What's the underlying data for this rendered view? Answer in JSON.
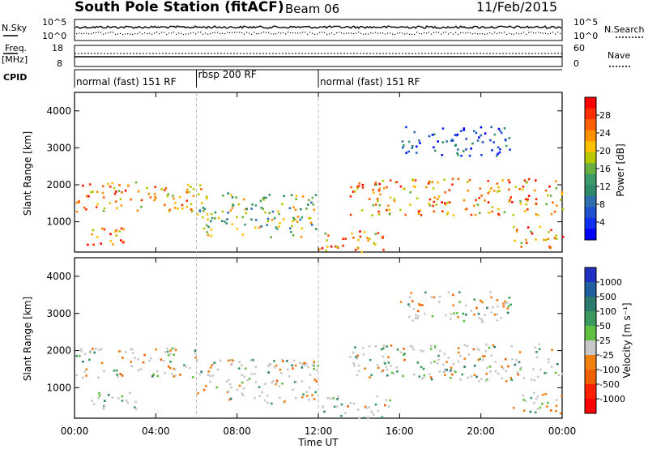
{
  "header": {
    "station": "South Pole Station (fitACF)",
    "beam": "Beam 06",
    "date": "11/Feb/2015"
  },
  "strips": {
    "nsky_label": "N.Sky",
    "nsky_ticks": [
      "10^5",
      "10^0"
    ],
    "nsearch_label": "N.Search",
    "nsearch_ticks": [
      "10^5",
      "10^0"
    ],
    "freq_label": "Freq.",
    "freq_unit": "[MHz]",
    "freq_ticks": [
      "18",
      "8"
    ],
    "nave_label": "Nave",
    "nave_ticks": [
      "60",
      "0"
    ],
    "cpid_label": "CPID",
    "cpid_segments": [
      {
        "label": "normal (fast) 151 RF",
        "start_h": 0,
        "end_h": 6
      },
      {
        "label": "rbsp 200 RF",
        "start_h": 6,
        "end_h": 12
      },
      {
        "label": "normal (fast) 151 RF",
        "start_h": 12,
        "end_h": 24
      }
    ]
  },
  "chart_data": [
    {
      "type": "heatmap",
      "ylabel": "Slant Range [km]",
      "yticks": [
        "4000",
        "3000",
        "2000",
        "1000"
      ],
      "ylim": [
        180,
        4500
      ],
      "xlim_hours": [
        0,
        24
      ],
      "colorbar": {
        "label": "Power [dB]",
        "ticks": [
          "28",
          "24",
          "20",
          "16",
          "12",
          "8",
          "4"
        ],
        "colors": [
          "#ff0000",
          "#ff3000",
          "#ff6000",
          "#ff9000",
          "#ffc000",
          "#b8c800",
          "#6ab040",
          "#3a9a6a",
          "#2f8a6a",
          "#2f6fb0",
          "#2050d0",
          "#1030f0",
          "#0000ff"
        ]
      },
      "scatter_bands": [
        {
          "t0": 0,
          "t1": 6.2,
          "r0": 1300,
          "r1": 2100,
          "value": "high"
        },
        {
          "t0": 0.6,
          "t1": 3,
          "r0": 400,
          "r1": 900,
          "value": "high"
        },
        {
          "t0": 6,
          "t1": 12,
          "r0": 600,
          "r1": 1800,
          "value": "mid"
        },
        {
          "t0": 13.5,
          "t1": 24,
          "r0": 1200,
          "r1": 2200,
          "value": "high"
        },
        {
          "t0": 16,
          "t1": 21.5,
          "r0": 2800,
          "r1": 3600,
          "value": "low"
        },
        {
          "t0": 12,
          "t1": 15.5,
          "r0": 200,
          "r1": 800,
          "value": "high"
        },
        {
          "t0": 21.5,
          "t1": 24,
          "r0": 300,
          "r1": 900,
          "value": "high"
        }
      ]
    },
    {
      "type": "heatmap",
      "ylabel": "Slant Range [km]",
      "yticks": [
        "4000",
        "3000",
        "2000",
        "1000"
      ],
      "ylim": [
        180,
        4500
      ],
      "xlim_hours": [
        0,
        24
      ],
      "xlabel": "Time UT",
      "xticks": [
        "00:00",
        "04:00",
        "08:00",
        "12:00",
        "16:00",
        "20:00",
        "00:00"
      ],
      "colorbar": {
        "label": "Velocity [m s⁻¹]",
        "ticks": [
          "1000",
          "500",
          "100",
          "50",
          "25",
          "-25",
          "-100",
          "-500",
          "-1000"
        ],
        "colors": [
          "#2030c0",
          "#2060a0",
          "#2a7a70",
          "#3a9a60",
          "#60c040",
          "#c8c8c8",
          "#f08010",
          "#f06000",
          "#ff2000",
          "#ff0000"
        ]
      }
    }
  ]
}
